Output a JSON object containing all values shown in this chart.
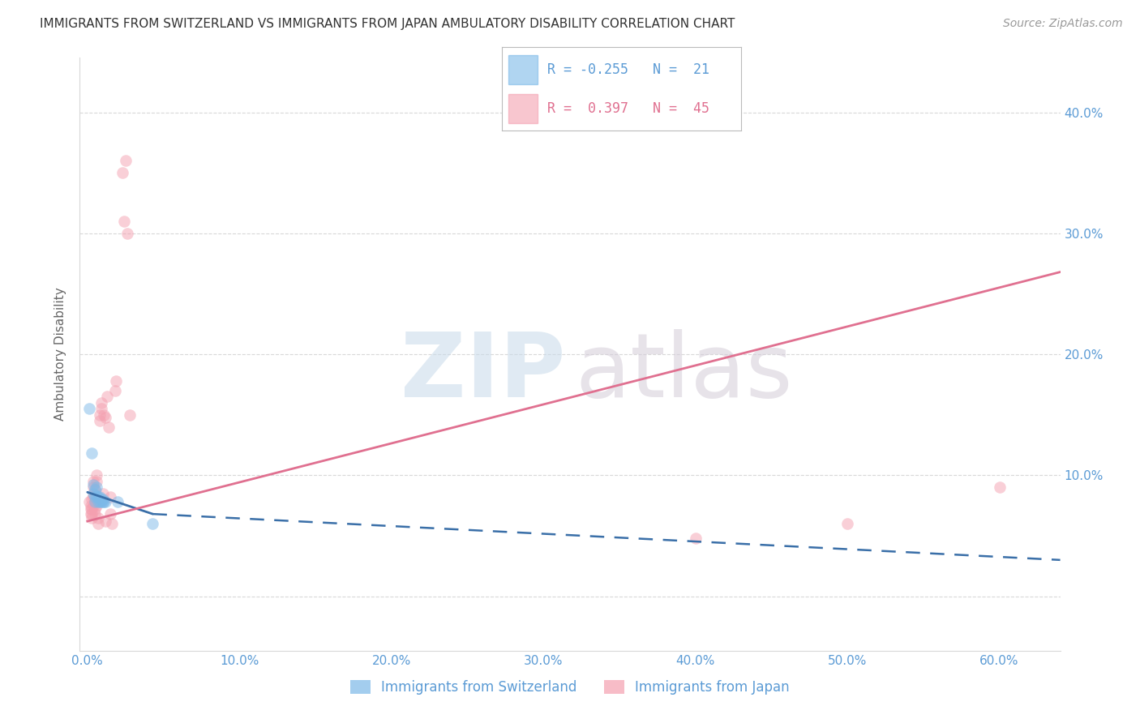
{
  "title": "IMMIGRANTS FROM SWITZERLAND VS IMMIGRANTS FROM JAPAN AMBULATORY DISABILITY CORRELATION CHART",
  "source": "Source: ZipAtlas.com",
  "ylabel": "Ambulatory Disability",
  "ytick_labels": [
    "",
    "10.0%",
    "20.0%",
    "30.0%",
    "40.0%"
  ],
  "yticks": [
    0.0,
    0.1,
    0.2,
    0.3,
    0.4
  ],
  "xticks": [
    0.0,
    0.1,
    0.2,
    0.3,
    0.4,
    0.5,
    0.6
  ],
  "xlim": [
    -0.005,
    0.64
  ],
  "ylim": [
    -0.045,
    0.445
  ],
  "switzerland_scatter": [
    [
      0.001,
      0.155
    ],
    [
      0.003,
      0.118
    ],
    [
      0.004,
      0.092
    ],
    [
      0.004,
      0.085
    ],
    [
      0.005,
      0.088
    ],
    [
      0.005,
      0.082
    ],
    [
      0.005,
      0.078
    ],
    [
      0.006,
      0.09
    ],
    [
      0.006,
      0.083
    ],
    [
      0.007,
      0.082
    ],
    [
      0.007,
      0.078
    ],
    [
      0.008,
      0.082
    ],
    [
      0.008,
      0.078
    ],
    [
      0.009,
      0.08
    ],
    [
      0.009,
      0.078
    ],
    [
      0.01,
      0.078
    ],
    [
      0.01,
      0.08
    ],
    [
      0.011,
      0.078
    ],
    [
      0.012,
      0.078
    ],
    [
      0.02,
      0.078
    ],
    [
      0.043,
      0.06
    ]
  ],
  "japan_scatter": [
    [
      0.001,
      0.078
    ],
    [
      0.002,
      0.072
    ],
    [
      0.002,
      0.068
    ],
    [
      0.002,
      0.075
    ],
    [
      0.003,
      0.065
    ],
    [
      0.003,
      0.072
    ],
    [
      0.003,
      0.08
    ],
    [
      0.003,
      0.068
    ],
    [
      0.004,
      0.09
    ],
    [
      0.004,
      0.095
    ],
    [
      0.004,
      0.075
    ],
    [
      0.004,
      0.082
    ],
    [
      0.005,
      0.078
    ],
    [
      0.005,
      0.068
    ],
    [
      0.005,
      0.072
    ],
    [
      0.005,
      0.088
    ],
    [
      0.006,
      0.095
    ],
    [
      0.006,
      0.1
    ],
    [
      0.006,
      0.075
    ],
    [
      0.007,
      0.08
    ],
    [
      0.007,
      0.06
    ],
    [
      0.007,
      0.065
    ],
    [
      0.008,
      0.145
    ],
    [
      0.008,
      0.15
    ],
    [
      0.009,
      0.16
    ],
    [
      0.009,
      0.155
    ],
    [
      0.01,
      0.085
    ],
    [
      0.011,
      0.15
    ],
    [
      0.012,
      0.062
    ],
    [
      0.012,
      0.148
    ],
    [
      0.013,
      0.165
    ],
    [
      0.014,
      0.14
    ],
    [
      0.015,
      0.082
    ],
    [
      0.015,
      0.068
    ],
    [
      0.016,
      0.06
    ],
    [
      0.018,
      0.17
    ],
    [
      0.019,
      0.178
    ],
    [
      0.023,
      0.35
    ],
    [
      0.024,
      0.31
    ],
    [
      0.025,
      0.36
    ],
    [
      0.026,
      0.3
    ],
    [
      0.028,
      0.15
    ],
    [
      0.4,
      0.048
    ],
    [
      0.5,
      0.06
    ],
    [
      0.6,
      0.09
    ]
  ],
  "switzerland_line": {
    "x": [
      0.0,
      0.043
    ],
    "y": [
      0.086,
      0.068
    ]
  },
  "switzerland_line_ext": {
    "x": [
      0.043,
      0.64
    ],
    "y": [
      0.068,
      0.03
    ]
  },
  "japan_line": {
    "x": [
      0.0,
      0.64
    ],
    "y": [
      0.062,
      0.268
    ]
  },
  "scatter_size": 110,
  "scatter_alpha": 0.5,
  "switzerland_color": "#7cb9e8",
  "japan_color": "#f4a0b0",
  "background_color": "#ffffff",
  "title_color": "#333333",
  "axis_label_color": "#5b9bd5",
  "grid_color": "#d8d8d8",
  "sw_line_color": "#3a6fa8",
  "jp_line_color": "#e07090",
  "legend_sw_color": "#7cb9e8",
  "legend_jp_color": "#f4a0b0"
}
